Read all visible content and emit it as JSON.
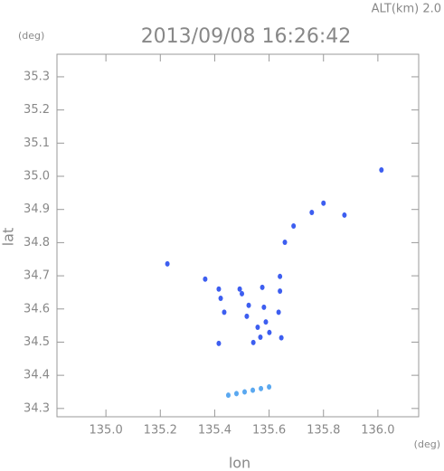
{
  "chart_data": {
    "type": "scatter",
    "title": "2013/09/08 16:26:42",
    "annotation": "ALT(km)  2.0",
    "x_label": "lon",
    "y_label": "lat",
    "x_unit": "(deg)",
    "y_unit": "(deg)",
    "xlim": [
      134.82,
      136.15
    ],
    "ylim": [
      34.275,
      35.368
    ],
    "xticks": [
      {
        "value": 135.0,
        "label": "135.0"
      },
      135.2,
      135.4,
      135.6,
      135.8,
      {
        "value": 136.0,
        "label": "136.0"
      }
    ],
    "yticks": [
      34.3,
      34.4,
      34.5,
      34.6,
      34.7,
      34.8,
      34.9,
      {
        "value": 35.0,
        "label": "35.0"
      },
      35.1,
      35.2,
      35.3
    ],
    "series": [
      {
        "color": "#3d5ef0",
        "x": [
          136.013,
          135.8,
          135.757,
          135.877,
          135.69,
          135.658,
          135.226,
          135.365,
          135.64,
          135.415,
          135.492,
          135.575,
          135.64,
          135.422,
          135.5,
          135.525,
          135.581,
          135.435,
          135.635,
          135.518,
          135.588,
          135.558,
          135.601,
          135.568,
          135.645,
          135.415,
          135.542
        ],
        "values": [
          35.019,
          34.919,
          34.891,
          34.883,
          34.85,
          34.801,
          34.736,
          34.69,
          34.698,
          34.66,
          34.66,
          34.665,
          34.654,
          34.632,
          34.646,
          34.611,
          34.605,
          34.59,
          34.59,
          34.578,
          34.561,
          34.545,
          34.529,
          34.515,
          34.513,
          34.496,
          34.499
        ]
      },
      {
        "color": "#5aa8f0",
        "x": [
          135.45,
          135.48,
          135.51,
          135.54,
          135.57,
          135.6
        ],
        "values": [
          34.34,
          34.345,
          34.35,
          34.355,
          34.36,
          34.365
        ]
      }
    ]
  }
}
